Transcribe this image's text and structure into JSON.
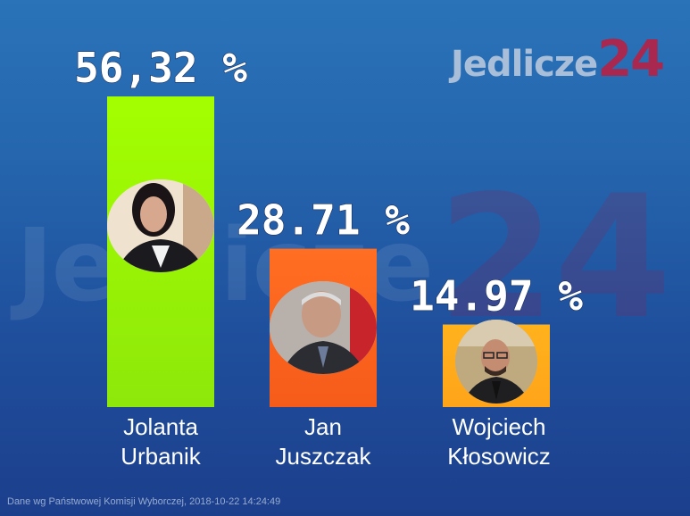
{
  "logo": {
    "word": "Jedlicze",
    "num": "24"
  },
  "watermark": {
    "word": "Jedlicze",
    "num": "24"
  },
  "footer": "Dane wg Państwowej Komisji Wyborczej,  2018-10-22 14:24:49",
  "chart_data": {
    "type": "bar",
    "categories": [
      [
        "Jolanta",
        "Urbanik"
      ],
      [
        "Jan",
        "Juszczak"
      ],
      [
        "Wojciech",
        "Kłosowicz"
      ]
    ],
    "values": [
      56.32,
      28.71,
      14.97
    ],
    "value_labels": [
      "56,32 %",
      "28.71 %",
      "14.97 %"
    ],
    "colors": [
      "#8ee80a",
      "#f65b1a",
      "#ffa41a"
    ],
    "bar_gradient_top": [
      "#a3ff00",
      "#ff6e22",
      "#ffb21c"
    ],
    "title": "",
    "xlabel": "",
    "ylabel": "",
    "grid": false,
    "legend": "none"
  }
}
